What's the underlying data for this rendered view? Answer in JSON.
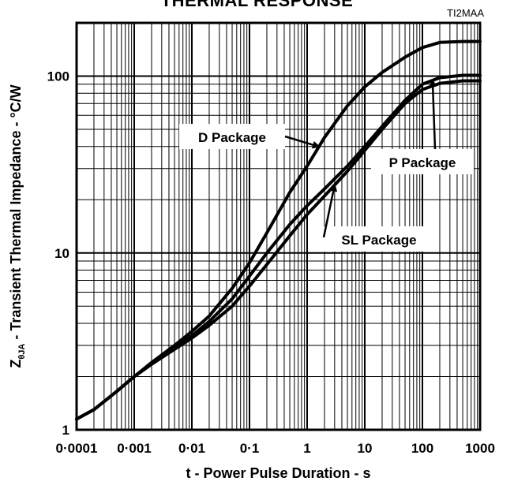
{
  "chart_data": {
    "type": "line",
    "title": "THERMAL RESPONSE",
    "figure_code": "TI2MAA",
    "xlabel": "t - Power Pulse Duration - s",
    "ylabel_main": "Z",
    "ylabel_sub": "θJA",
    "ylabel_rest": " - Transient Thermal Impedance - °C/W",
    "x_scale": "log",
    "y_scale": "log",
    "xlim": [
      0.0001,
      1000
    ],
    "ylim": [
      1,
      200
    ],
    "x_ticks": [
      {
        "value": 0.0001,
        "label": "0·0001"
      },
      {
        "value": 0.001,
        "label": "0·001"
      },
      {
        "value": 0.01,
        "label": "0·01"
      },
      {
        "value": 0.1,
        "label": "0·1"
      },
      {
        "value": 1,
        "label": "1"
      },
      {
        "value": 10,
        "label": "10"
      },
      {
        "value": 100,
        "label": "100"
      },
      {
        "value": 1000,
        "label": "1000"
      }
    ],
    "y_ticks": [
      {
        "value": 1,
        "label": "1"
      },
      {
        "value": 10,
        "label": "10"
      },
      {
        "value": 100,
        "label": "100"
      }
    ],
    "grid": true,
    "series": [
      {
        "name": "D Package",
        "x": [
          0.0001,
          0.0002,
          0.0005,
          0.001,
          0.002,
          0.005,
          0.01,
          0.02,
          0.05,
          0.1,
          0.2,
          0.5,
          1,
          2,
          5,
          10,
          20,
          50,
          100,
          200,
          500,
          1000
        ],
        "y": [
          1.15,
          1.3,
          1.65,
          2.0,
          2.4,
          3.0,
          3.6,
          4.4,
          6.3,
          8.8,
          13,
          22,
          31,
          45,
          68,
          87,
          105,
          128,
          145,
          155,
          157,
          157
        ]
      },
      {
        "name": "P Package",
        "x": [
          0.0001,
          0.0002,
          0.0005,
          0.001,
          0.002,
          0.005,
          0.01,
          0.02,
          0.05,
          0.1,
          0.2,
          0.5,
          1,
          2,
          5,
          10,
          20,
          50,
          100,
          200,
          500,
          1000
        ],
        "y": [
          1.15,
          1.3,
          1.65,
          2.0,
          2.35,
          2.9,
          3.4,
          4.1,
          5.5,
          7.4,
          10,
          14.5,
          18.5,
          23,
          31,
          40,
          52,
          73,
          90,
          98,
          101,
          101
        ]
      },
      {
        "name": "SL Package",
        "x": [
          0.0001,
          0.0002,
          0.0005,
          0.001,
          0.002,
          0.005,
          0.01,
          0.02,
          0.05,
          0.1,
          0.2,
          0.5,
          1,
          2,
          5,
          10,
          20,
          50,
          100,
          200,
          500,
          1000
        ],
        "y": [
          1.15,
          1.3,
          1.65,
          2.0,
          2.35,
          2.85,
          3.3,
          3.9,
          5.0,
          6.5,
          8.6,
          12.5,
          16.5,
          21,
          29,
          38,
          50,
          70,
          84,
          91,
          94,
          94
        ]
      }
    ],
    "annotations": [
      {
        "text": "D Package",
        "series": "D Package"
      },
      {
        "text": "P Package",
        "series": "P Package"
      },
      {
        "text": "SL Package",
        "series": "SL Package"
      }
    ]
  }
}
